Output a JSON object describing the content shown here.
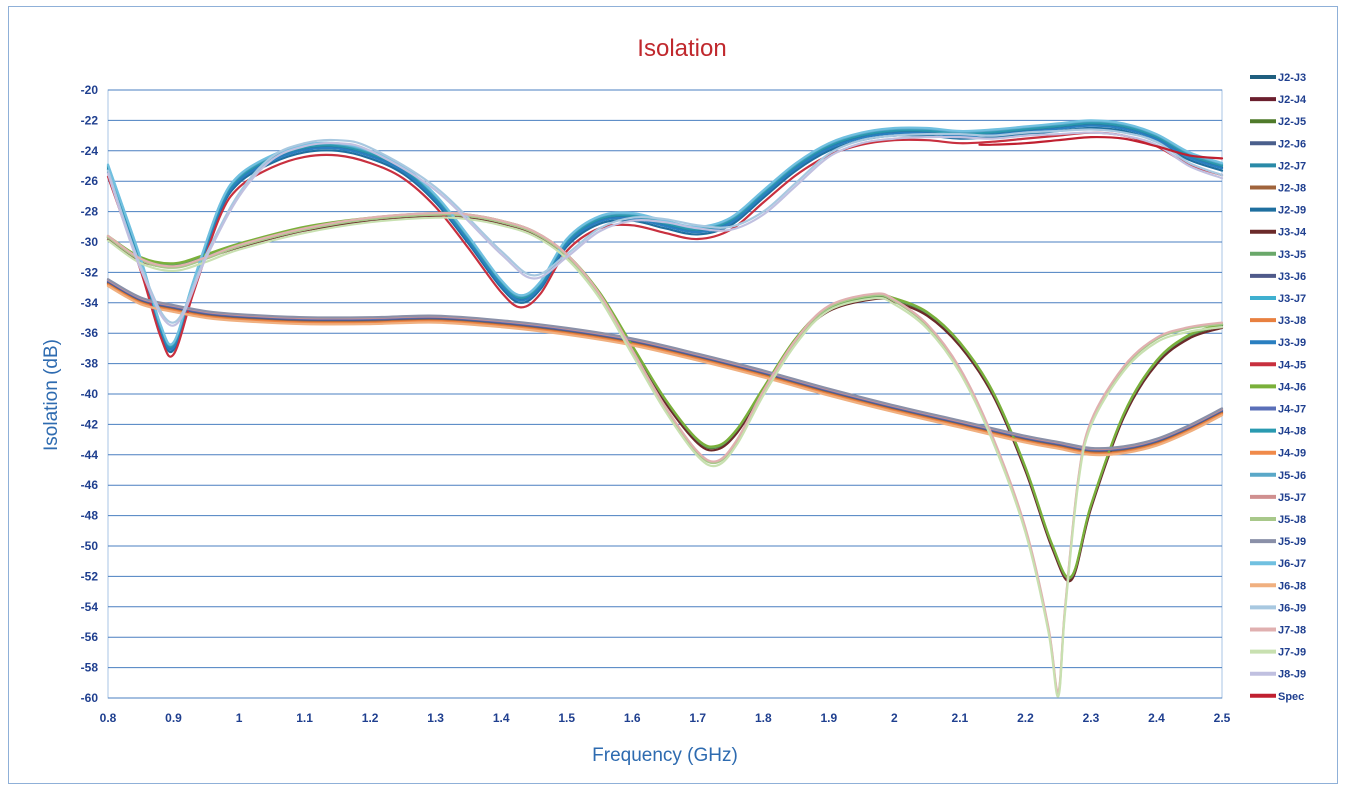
{
  "chart_data": {
    "type": "line",
    "title": "Isolation",
    "xlabel": "Frequency (GHz)",
    "ylabel": "Isolation (dB)",
    "xlim": [
      0.8,
      2.5
    ],
    "ylim": [
      -60,
      -20
    ],
    "x_ticks": [
      0.8,
      0.9,
      1,
      1.1,
      1.2,
      1.3,
      1.4,
      1.5,
      1.6,
      1.7,
      1.8,
      1.9,
      2,
      2.1,
      2.2,
      2.3,
      2.4,
      2.5
    ],
    "x_tick_labels": [
      "0.8",
      "0.9",
      "1",
      "1.1",
      "1.2",
      "1.3",
      "1.4",
      "1.5",
      "1.6",
      "1.7",
      "1.8",
      "1.9",
      "2",
      "2.1",
      "2.2",
      "2.3",
      "2.4",
      "2.5"
    ],
    "y_ticks": [
      -20,
      -22,
      -24,
      -26,
      -28,
      -30,
      -32,
      -34,
      -36,
      -38,
      -40,
      -42,
      -44,
      -46,
      -48,
      -50,
      -52,
      -54,
      -56,
      -58,
      -60
    ],
    "y_tick_labels": [
      "-20",
      "-22",
      "-24",
      "-26",
      "-28",
      "-30",
      "-32",
      "-34",
      "-36",
      "-38",
      "-40",
      "-42",
      "-44",
      "-46",
      "-48",
      "-50",
      "-52",
      "-54",
      "-56",
      "-58",
      "-60"
    ],
    "grid": true,
    "legend_position": "right",
    "curve_families": {
      "A": {
        "x": [
          0.8,
          0.85,
          0.88,
          0.9,
          0.93,
          0.97,
          1.0,
          1.05,
          1.1,
          1.15,
          1.2,
          1.25,
          1.3,
          1.35,
          1.4,
          1.43,
          1.46,
          1.5,
          1.55,
          1.6,
          1.65,
          1.7,
          1.75,
          1.8,
          1.85,
          1.9,
          1.95,
          2.0,
          2.05,
          2.1,
          2.15,
          2.2,
          2.25,
          2.3,
          2.35,
          2.4,
          2.45,
          2.5
        ],
        "y": [
          -25.3,
          -31.5,
          -35.8,
          -37.0,
          -33.0,
          -28.0,
          -26.0,
          -24.7,
          -24.0,
          -23.9,
          -24.4,
          -25.4,
          -27.3,
          -30.0,
          -32.9,
          -33.9,
          -33.0,
          -30.2,
          -28.7,
          -28.5,
          -29.0,
          -29.4,
          -28.8,
          -27.0,
          -25.2,
          -23.9,
          -23.2,
          -22.9,
          -22.9,
          -23.1,
          -23.0,
          -22.8,
          -22.6,
          -22.4,
          -22.6,
          -23.3,
          -24.5,
          -25.2
        ]
      },
      "B": {
        "x": [
          0.8,
          0.85,
          0.9,
          0.95,
          1.0,
          1.1,
          1.2,
          1.3,
          1.35,
          1.4,
          1.45,
          1.5,
          1.55,
          1.6,
          1.65,
          1.7,
          1.73,
          1.76,
          1.8,
          1.85,
          1.9,
          1.97,
          2.0,
          2.05,
          2.1,
          2.15,
          2.2,
          2.24,
          2.27,
          2.3,
          2.35,
          2.4,
          2.45,
          2.5
        ],
        "y": [
          -29.8,
          -31.2,
          -31.6,
          -31.0,
          -30.3,
          -29.2,
          -28.6,
          -28.3,
          -28.4,
          -28.8,
          -29.5,
          -31.0,
          -33.5,
          -37.0,
          -40.5,
          -43.2,
          -43.6,
          -42.5,
          -39.8,
          -36.5,
          -34.5,
          -33.7,
          -33.9,
          -34.8,
          -36.8,
          -40.0,
          -45.0,
          -50.0,
          -52.2,
          -47.5,
          -41.5,
          -38.0,
          -36.3,
          -35.6
        ]
      },
      "C": {
        "x": [
          0.8,
          0.85,
          0.9,
          0.95,
          1.0,
          1.1,
          1.2,
          1.3,
          1.4,
          1.5,
          1.6,
          1.7,
          1.8,
          1.9,
          2.0,
          2.1,
          2.2,
          2.25,
          2.3,
          2.35,
          2.4,
          2.45,
          2.5
        ],
        "y": [
          -32.7,
          -33.9,
          -34.4,
          -34.8,
          -35.0,
          -35.2,
          -35.2,
          -35.1,
          -35.4,
          -35.9,
          -36.6,
          -37.6,
          -38.7,
          -39.9,
          -41.0,
          -42.0,
          -43.0,
          -43.4,
          -43.8,
          -43.7,
          -43.2,
          -42.3,
          -41.2
        ]
      },
      "D": {
        "x": [
          0.8,
          0.85,
          0.9,
          0.95,
          1.0,
          1.05,
          1.1,
          1.15,
          1.2,
          1.3,
          1.4,
          1.45,
          1.5,
          1.55,
          1.6,
          1.65,
          1.7,
          1.75,
          1.8,
          1.85,
          1.9,
          1.95,
          2.0,
          2.05,
          2.1,
          2.15,
          2.2,
          2.25,
          2.3,
          2.35,
          2.4,
          2.45,
          2.5
        ],
        "y": [
          -25.5,
          -31.8,
          -35.5,
          -31.0,
          -27.0,
          -24.6,
          -23.7,
          -23.5,
          -24.0,
          -26.6,
          -30.8,
          -32.4,
          -31.0,
          -29.3,
          -28.6,
          -28.7,
          -29.1,
          -29.2,
          -28.2,
          -26.3,
          -24.4,
          -23.5,
          -23.2,
          -23.1,
          -23.1,
          -23.2,
          -23.0,
          -22.9,
          -22.8,
          -23.0,
          -23.6,
          -25.0,
          -25.8
        ]
      },
      "E": {
        "x": [
          0.8,
          0.85,
          0.9,
          0.95,
          1.0,
          1.1,
          1.2,
          1.3,
          1.35,
          1.4,
          1.45,
          1.5,
          1.55,
          1.6,
          1.65,
          1.7,
          1.73,
          1.76,
          1.8,
          1.85,
          1.9,
          1.97,
          2.0,
          2.05,
          2.1,
          2.15,
          2.2,
          2.235,
          2.25,
          2.26,
          2.28,
          2.3,
          2.35,
          2.4,
          2.45,
          2.5
        ],
        "y": [
          -29.8,
          -31.3,
          -31.8,
          -31.2,
          -30.4,
          -29.3,
          -28.6,
          -28.3,
          -28.4,
          -28.8,
          -29.5,
          -31.0,
          -33.6,
          -37.3,
          -41.0,
          -44.0,
          -44.6,
          -43.2,
          -40.0,
          -36.6,
          -34.4,
          -33.6,
          -34.0,
          -35.6,
          -38.5,
          -43.0,
          -49.0,
          -55.5,
          -59.8,
          -54.5,
          -46.0,
          -42.0,
          -38.4,
          -36.5,
          -35.8,
          -35.5
        ]
      },
      "S": {
        "x": [
          2.13,
          2.15,
          2.2,
          2.25,
          2.3,
          2.35,
          2.4,
          2.45,
          2.5
        ],
        "y": [
          -23.6,
          -23.6,
          -23.5,
          -23.3,
          -23.1,
          -23.2,
          -23.7,
          -24.3,
          -24.5
        ]
      }
    },
    "series": [
      {
        "name": "J2-J3",
        "color": "#1f5f7f",
        "curve": "A",
        "dy": 0.1
      },
      {
        "name": "J2-J4",
        "color": "#6b1f2e",
        "curve": "C",
        "dy": 0
      },
      {
        "name": "J2-J5",
        "color": "#4f7a2a",
        "curve": "B",
        "dy": 0.1
      },
      {
        "name": "J2-J6",
        "color": "#4a5f8c",
        "curve": "C",
        "dy": 0.05
      },
      {
        "name": "J2-J7",
        "color": "#2a8aa8",
        "curve": "A",
        "dy": 0.2
      },
      {
        "name": "J2-J8",
        "color": "#a0643c",
        "curve": "C",
        "dy": -0.05
      },
      {
        "name": "J2-J9",
        "color": "#1f6f9f",
        "curve": "A",
        "dy": -0.1
      },
      {
        "name": "J3-J4",
        "color": "#6b2a2a",
        "curve": "B",
        "dy": -0.05
      },
      {
        "name": "J3-J5",
        "color": "#6aa86a",
        "curve": "B",
        "dy": 0.15
      },
      {
        "name": "J3-J6",
        "color": "#4f5a8a",
        "curve": "C",
        "dy": 0.1
      },
      {
        "name": "J3-J7",
        "color": "#3fb0d0",
        "curve": "A",
        "dy": 0.3
      },
      {
        "name": "J3-J8",
        "color": "#e88040",
        "curve": "C",
        "dy": -0.1
      },
      {
        "name": "J3-J9",
        "color": "#2a7fc0",
        "curve": "A",
        "dy": 0.05
      },
      {
        "name": "J4-J5",
        "color": "#c8303f",
        "curve": "A",
        "dy": -0.4
      },
      {
        "name": "J4-J6",
        "color": "#7ab03a",
        "curve": "B",
        "dy": 0.2
      },
      {
        "name": "J4-J7",
        "color": "#5a6fb8",
        "curve": "C",
        "dy": 0.15
      },
      {
        "name": "J4-J8",
        "color": "#2a9ab0",
        "curve": "A",
        "dy": 0.25
      },
      {
        "name": "J4-J9",
        "color": "#f08a4a",
        "curve": "C",
        "dy": -0.15
      },
      {
        "name": "J5-J6",
        "color": "#5aa8c8",
        "curve": "A",
        "dy": 0.35
      },
      {
        "name": "J5-J7",
        "color": "#d09090",
        "curve": "C",
        "dy": 0.2
      },
      {
        "name": "J5-J8",
        "color": "#a8c88a",
        "curve": "E",
        "dy": 0.1
      },
      {
        "name": "J5-J9",
        "color": "#8a90a8",
        "curve": "C",
        "dy": 0.25
      },
      {
        "name": "J6-J7",
        "color": "#70c0e0",
        "curve": "A",
        "dy": 0.4
      },
      {
        "name": "J6-J8",
        "color": "#f0b080",
        "curve": "C",
        "dy": -0.2
      },
      {
        "name": "J6-J9",
        "color": "#a8c8e0",
        "curve": "D",
        "dy": 0.2
      },
      {
        "name": "J7-J8",
        "color": "#e0b0b0",
        "curve": "E",
        "dy": 0.2
      },
      {
        "name": "J7-J9",
        "color": "#c8e0b0",
        "curve": "E",
        "dy": -0.1
      },
      {
        "name": "J8-J9",
        "color": "#c0c0e0",
        "curve": "D",
        "dy": 0
      },
      {
        "name": "Spec",
        "color": "#c02030",
        "curve": "S",
        "dy": 0
      }
    ]
  }
}
